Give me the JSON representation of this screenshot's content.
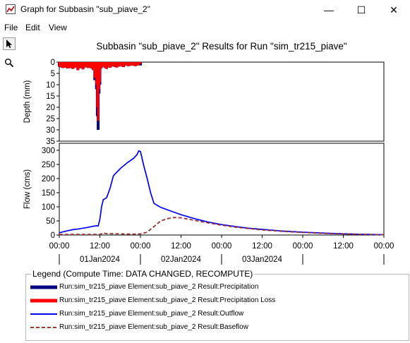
{
  "window": {
    "title": "Graph for Subbasin \"sub_piave_2\"",
    "minimize_glyph": "—",
    "maximize_glyph": "☐",
    "close_glyph": "✕"
  },
  "menu": {
    "items": [
      "File",
      "Edit",
      "View"
    ]
  },
  "toolbar": {
    "tools": [
      "arrow-pointer-icon",
      "magnifier-icon"
    ]
  },
  "chart_data": {
    "type": "line",
    "title": "Subbasin \"sub_piave_2\" Results for Run \"sim_tr215_piave\"",
    "x_axis": {
      "time_ticks": [
        "00:00",
        "12:00",
        "00:00",
        "12:00",
        "00:00",
        "12:00",
        "00:00",
        "12:00",
        "00:00"
      ],
      "tick_hours": [
        0,
        12,
        24,
        36,
        48,
        60,
        72,
        84,
        96
      ],
      "date_labels": [
        "01Jan2024",
        "02Jan2024",
        "03Jan2024"
      ],
      "date_centers_hours": [
        12,
        36,
        60
      ],
      "range_hours": [
        0,
        96
      ],
      "hour0": "01Jan2024 00:00"
    },
    "panels": [
      {
        "name": "depth",
        "ylabel": "Depth (mm)",
        "ylim": [
          0,
          35
        ],
        "inverted": true,
        "yticks": [
          0,
          5,
          10,
          15,
          20,
          25,
          30,
          35
        ],
        "grid": false,
        "series": [
          {
            "name": "Run:sim_tr215_piave Element:sub_piave_2 Result:Precipitation",
            "color": "#000080",
            "style": "bar-thick",
            "x": [
              0.0,
              0.5,
              1,
              1.5,
              2,
              2.5,
              3,
              3.5,
              4,
              4.5,
              5,
              5.5,
              6,
              6.5,
              7,
              7.5,
              8,
              8.5,
              9,
              9.5,
              10,
              10.5,
              11,
              11.25,
              11.5,
              11.75,
              12,
              12.25,
              12.5,
              13,
              13.5,
              14,
              14.5,
              15,
              15.5,
              16,
              16.5,
              17,
              17.5,
              18,
              18.5,
              19,
              19.5,
              20,
              20.5,
              21,
              21.5,
              22,
              22.5,
              23,
              23.5,
              24
            ],
            "y": [
              2.0,
              2.3,
              2.6,
              2.5,
              2.4,
              2.8,
              2.7,
              2.5,
              3.0,
              2.6,
              2.3,
              3.6,
              2.8,
              2.5,
              3.2,
              2.4,
              2.2,
              2.6,
              2.4,
              2.8,
              3.5,
              8.0,
              12.0,
              24.0,
              30.0,
              14.0,
              10.0,
              3.0,
              2.4,
              2.0,
              2.6,
              3.0,
              2.2,
              2.5,
              2.0,
              1.8,
              2.2,
              2.4,
              2.0,
              1.6,
              2.0,
              2.2,
              1.6,
              1.5,
              1.8,
              1.6,
              1.4,
              1.6,
              1.8,
              1.5,
              1.4,
              1.5
            ]
          },
          {
            "name": "Run:sim_tr215_piave Element:sub_piave_2 Result:Precipitation Loss",
            "color": "#ff0000",
            "style": "bar-thick",
            "x": [
              0.0,
              0.5,
              1,
              1.5,
              2,
              2.5,
              3,
              3.5,
              4,
              4.5,
              5,
              5.5,
              6,
              6.5,
              7,
              7.5,
              8,
              8.5,
              9,
              9.5,
              10,
              10.5,
              11,
              11.25,
              11.5,
              11.75,
              12,
              12.25,
              12.5,
              13,
              13.5,
              14,
              14.5,
              15,
              15.5,
              16,
              16.5,
              17,
              17.5,
              18,
              18.5,
              19,
              19.5,
              20,
              20.5,
              21,
              21.5,
              22,
              22.5,
              23,
              23.5,
              24
            ],
            "y": [
              2.0,
              2.3,
              2.6,
              2.5,
              2.4,
              2.8,
              2.7,
              2.5,
              3.0,
              2.6,
              2.3,
              3.6,
              2.8,
              2.5,
              3.2,
              2.4,
              2.2,
              2.6,
              2.4,
              2.8,
              3.5,
              7.0,
              10.0,
              20.0,
              26.0,
              12.0,
              9.0,
              3.0,
              2.4,
              2.0,
              2.6,
              3.0,
              2.2,
              2.5,
              2.0,
              1.8,
              2.2,
              2.4,
              2.0,
              1.6,
              2.0,
              2.2,
              1.6,
              1.5,
              1.8,
              1.6,
              1.4,
              1.6,
              1.8,
              1.5,
              1.4,
              0.8
            ]
          }
        ]
      },
      {
        "name": "flow",
        "ylabel": "Flow (cms)",
        "ylim": [
          0,
          325
        ],
        "inverted": false,
        "yticks": [
          0,
          50,
          100,
          150,
          200,
          250,
          300
        ],
        "grid": false,
        "series": [
          {
            "name": "Run:sim_tr215_piave Element:sub_piave_2 Result:Outflow",
            "color": "#0000ff",
            "style": "solid",
            "x": [
              0,
              2,
              4,
              6,
              8,
              10,
              11,
              11.5,
              12,
              12.5,
              13,
              14,
              15,
              16,
              18,
              20,
              22,
              23,
              23.5,
              24,
              25,
              26,
              27,
              28,
              30,
              33,
              36,
              40,
              44,
              48,
              52,
              56,
              60,
              66,
              72,
              80,
              88,
              96
            ],
            "y": [
              8,
              14,
              19,
              22,
              26,
              31,
              33,
              32,
              55,
              100,
              125,
              132,
              165,
              210,
              235,
              255,
              272,
              285,
              298,
              296,
              245,
              200,
              150,
              112,
              98,
              85,
              72,
              58,
              46,
              37,
              30,
              24,
              20,
              14,
              10,
              6,
              3,
              1
            ]
          },
          {
            "name": "Run:sim_tr215_piave Element:sub_piave_2 Result:Baseflow",
            "color": "#993333",
            "style": "dashed",
            "x": [
              0,
              5,
              10,
              12,
              13,
              14,
              18,
              22,
              24,
              26,
              28,
              30,
              32,
              34,
              36,
              40,
              44,
              48,
              52,
              56,
              60,
              66,
              72,
              80,
              88,
              96
            ],
            "y": [
              2,
              2,
              2,
              2,
              7,
              5,
              4,
              3,
              4,
              10,
              30,
              50,
              58,
              62,
              61,
              52,
              43,
              35,
              28,
              23,
              18,
              13,
              9,
              5,
              3,
              1
            ]
          }
        ]
      }
    ],
    "legend": {
      "title": "Legend (Compute Time: DATA CHANGED, RECOMPUTE)",
      "placement": "bottom",
      "entries": [
        {
          "label": "Run:sim_tr215_piave Element:sub_piave_2 Result:Precipitation",
          "color": "#000080",
          "style": "thick"
        },
        {
          "label": "Run:sim_tr215_piave Element:sub_piave_2 Result:Precipitation Loss",
          "color": "#ff0000",
          "style": "thick"
        },
        {
          "label": "Run:sim_tr215_piave Element:sub_piave_2 Result:Outflow",
          "color": "#0000ff",
          "style": "solid"
        },
        {
          "label": "Run:sim_tr215_piave Element:sub_piave_2 Result:Baseflow",
          "color": "#993333",
          "style": "dashed"
        }
      ]
    }
  }
}
